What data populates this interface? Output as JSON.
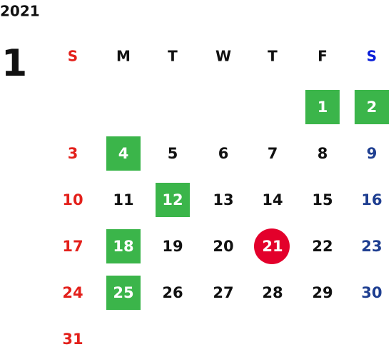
{
  "calendar": {
    "year": "2021",
    "month": "1",
    "weekdays": [
      "S",
      "M",
      "T",
      "W",
      "T",
      "F",
      "S"
    ],
    "weekday_colors": [
      "#e3201b",
      "#111111",
      "#111111",
      "#111111",
      "#111111",
      "#111111",
      "#0a1fd8"
    ],
    "day_colors": [
      "#e3201b",
      "#111111",
      "#111111",
      "#111111",
      "#111111",
      "#111111",
      "#1f3f91"
    ],
    "weeks": [
      [
        null,
        null,
        null,
        null,
        null,
        {
          "day": 1,
          "highlight": "square"
        },
        {
          "day": 2,
          "highlight": "square"
        }
      ],
      [
        {
          "day": 3
        },
        {
          "day": 4,
          "highlight": "square"
        },
        {
          "day": 5
        },
        {
          "day": 6
        },
        {
          "day": 7
        },
        {
          "day": 8
        },
        {
          "day": 9
        }
      ],
      [
        {
          "day": 10
        },
        {
          "day": 11
        },
        {
          "day": 12,
          "highlight": "square"
        },
        {
          "day": 13
        },
        {
          "day": 14
        },
        {
          "day": 15
        },
        {
          "day": 16
        }
      ],
      [
        {
          "day": 17
        },
        {
          "day": 18,
          "highlight": "square"
        },
        {
          "day": 19
        },
        {
          "day": 20
        },
        {
          "day": 21,
          "highlight": "circle"
        },
        {
          "day": 22
        },
        {
          "day": 23
        }
      ],
      [
        {
          "day": 24
        },
        {
          "day": 25,
          "highlight": "square"
        },
        {
          "day": 26
        },
        {
          "day": 27
        },
        {
          "day": 28
        },
        {
          "day": 29
        },
        {
          "day": 30
        }
      ],
      [
        {
          "day": 31
        },
        null,
        null,
        null,
        null,
        null,
        null
      ]
    ],
    "highlight_colors": {
      "square": "#3bb54a",
      "circle": "#e3002b"
    }
  }
}
